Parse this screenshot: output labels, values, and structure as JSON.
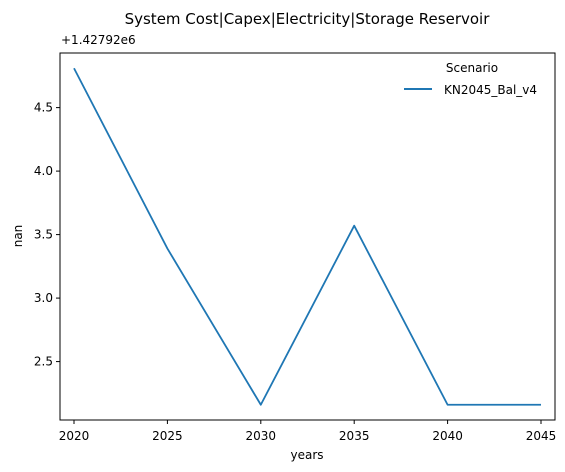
{
  "chart_data": {
    "type": "line",
    "title": "System Cost|Capex|Electricity|Storage Reservoir",
    "xlabel": "years",
    "ylabel": "nan",
    "y_offset_label": "+1.42792e6",
    "x": [
      2020,
      2025,
      2030,
      2035,
      2040,
      2045
    ],
    "x_ticks": [
      2020,
      2025,
      2030,
      2035,
      2040,
      2045
    ],
    "y_ticks": [
      2.5,
      3.0,
      3.5,
      4.0,
      4.5
    ],
    "y_tick_labels": [
      "2.5",
      "3.0",
      "3.5",
      "4.0",
      "4.5"
    ],
    "xlim": [
      2019.25,
      2045.75
    ],
    "ylim": [
      2.04,
      4.93
    ],
    "legend_title": "Scenario",
    "legend_position": "upper-right",
    "grid": false,
    "series": [
      {
        "name": "KN2045_Bal_v4",
        "color": "#1f77b4",
        "values": [
          4.81,
          3.39,
          2.16,
          3.57,
          2.16,
          2.16
        ]
      }
    ]
  }
}
